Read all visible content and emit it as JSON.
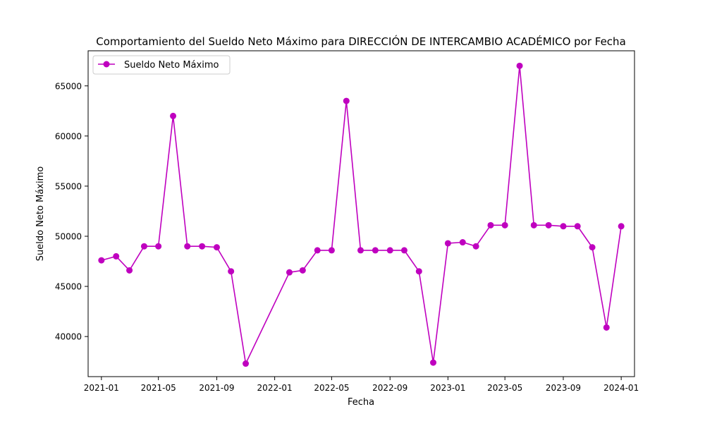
{
  "chart_data": {
    "type": "line",
    "title": "Comportamiento del Sueldo Neto Máximo para DIRECCIÓN DE INTERCAMBIO ACADÉMICO por Fecha",
    "xlabel": "Fecha",
    "ylabel": "Sueldo Neto Máximo",
    "xlim": [
      "2020-12-04",
      "2024-01-29"
    ],
    "ylim": [
      36000,
      68500
    ],
    "x_ticks": [
      {
        "date": "2021-01-01",
        "label": "2021-01"
      },
      {
        "date": "2021-05-01",
        "label": "2021-05"
      },
      {
        "date": "2021-09-01",
        "label": "2021-09"
      },
      {
        "date": "2022-01-01",
        "label": "2022-01"
      },
      {
        "date": "2022-05-01",
        "label": "2022-05"
      },
      {
        "date": "2022-09-01",
        "label": "2022-09"
      },
      {
        "date": "2023-01-01",
        "label": "2023-01"
      },
      {
        "date": "2023-05-01",
        "label": "2023-05"
      },
      {
        "date": "2023-09-01",
        "label": "2023-09"
      },
      {
        "date": "2024-01-01",
        "label": "2024-01"
      }
    ],
    "y_ticks": [
      40000,
      45000,
      50000,
      55000,
      60000,
      65000
    ],
    "grid": false,
    "legend": "upper-left",
    "series": [
      {
        "name": "Sueldo Neto Máximo",
        "color": "#bf00bf",
        "marker": "circle",
        "points": [
          {
            "x": "2021-01-01",
            "y": 47600
          },
          {
            "x": "2021-02-01",
            "y": 48000
          },
          {
            "x": "2021-03-01",
            "y": 46600
          },
          {
            "x": "2021-04-01",
            "y": 49000
          },
          {
            "x": "2021-05-01",
            "y": 49000
          },
          {
            "x": "2021-06-01",
            "y": 62000
          },
          {
            "x": "2021-07-01",
            "y": 49000
          },
          {
            "x": "2021-08-01",
            "y": 49000
          },
          {
            "x": "2021-09-01",
            "y": 48900
          },
          {
            "x": "2021-10-01",
            "y": 46500
          },
          {
            "x": "2021-11-01",
            "y": 37300
          },
          {
            "x": "2022-02-01",
            "y": 46400
          },
          {
            "x": "2022-03-01",
            "y": 46600
          },
          {
            "x": "2022-04-01",
            "y": 48600
          },
          {
            "x": "2022-05-01",
            "y": 48600
          },
          {
            "x": "2022-06-01",
            "y": 63500
          },
          {
            "x": "2022-07-01",
            "y": 48600
          },
          {
            "x": "2022-08-01",
            "y": 48600
          },
          {
            "x": "2022-09-01",
            "y": 48600
          },
          {
            "x": "2022-10-01",
            "y": 48600
          },
          {
            "x": "2022-11-01",
            "y": 46500
          },
          {
            "x": "2022-12-01",
            "y": 37400
          },
          {
            "x": "2023-01-01",
            "y": 49300
          },
          {
            "x": "2023-02-01",
            "y": 49400
          },
          {
            "x": "2023-03-01",
            "y": 49000
          },
          {
            "x": "2023-04-01",
            "y": 51100
          },
          {
            "x": "2023-05-01",
            "y": 51100
          },
          {
            "x": "2023-06-01",
            "y": 67000
          },
          {
            "x": "2023-07-01",
            "y": 51100
          },
          {
            "x": "2023-08-01",
            "y": 51100
          },
          {
            "x": "2023-09-01",
            "y": 51000
          },
          {
            "x": "2023-10-01",
            "y": 51000
          },
          {
            "x": "2023-11-01",
            "y": 48900
          },
          {
            "x": "2023-12-01",
            "y": 40900
          },
          {
            "x": "2024-01-01",
            "y": 51000
          }
        ]
      }
    ]
  }
}
